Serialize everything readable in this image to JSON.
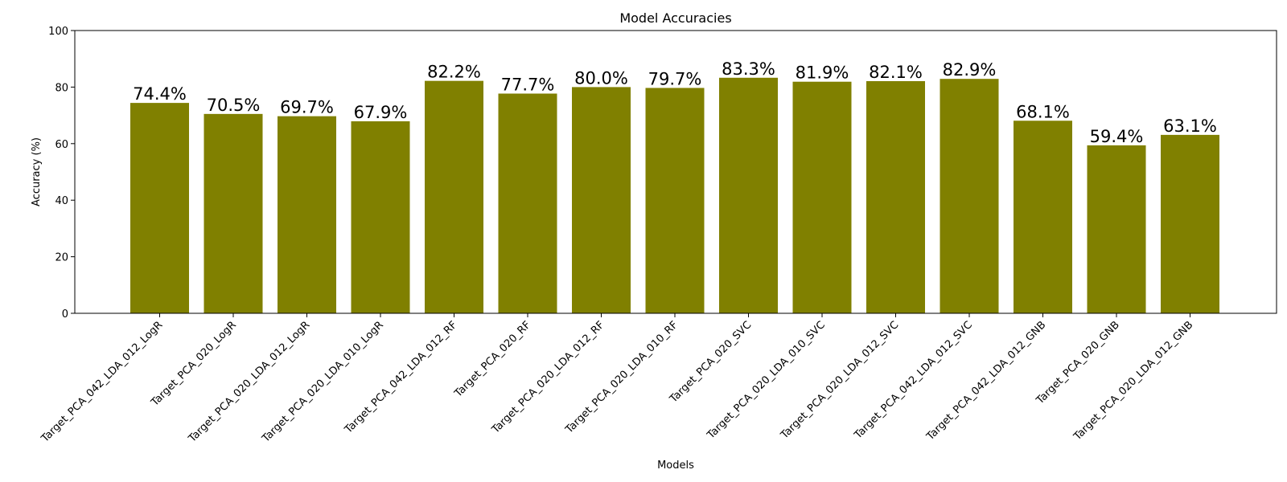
{
  "chart_data": {
    "type": "bar",
    "title": "Model Accuracies",
    "xlabel": "Models",
    "ylabel": "Accuracy (%)",
    "ylim": [
      0,
      100
    ],
    "yticks": [
      0,
      20,
      40,
      60,
      80,
      100
    ],
    "grid": false,
    "bar_color": "#808000",
    "categories": [
      "Target_PCA_042_LDA_012_LogR",
      "Target_PCA_020_LogR",
      "Target_PCA_020_LDA_012_LogR",
      "Target_PCA_020_LDA_010_LogR",
      "Target_PCA_042_LDA_012_RF",
      "Target_PCA_020_RF",
      "Target_PCA_020_LDA_012_RF",
      "Target_PCA_020_LDA_010_RF",
      "Target_PCA_020_SVC",
      "Target_PCA_020_LDA_010_SVC",
      "Target_PCA_020_LDA_012_SVC",
      "Target_PCA_042_LDA_012_SVC",
      "Target_PCA_042_LDA_012_GNB",
      "Target_PCA_020_GNB",
      "Target_PCA_020_LDA_012_GNB"
    ],
    "values": [
      74.4,
      70.5,
      69.7,
      67.9,
      82.2,
      77.7,
      80.0,
      79.7,
      83.3,
      81.9,
      82.1,
      82.9,
      68.1,
      59.4,
      63.1
    ],
    "value_labels": [
      "74.4%",
      "70.5%",
      "69.7%",
      "67.9%",
      "82.2%",
      "77.7%",
      "80.0%",
      "79.7%",
      "83.3%",
      "81.9%",
      "82.1%",
      "82.9%",
      "68.1%",
      "59.4%",
      "63.1%"
    ]
  }
}
